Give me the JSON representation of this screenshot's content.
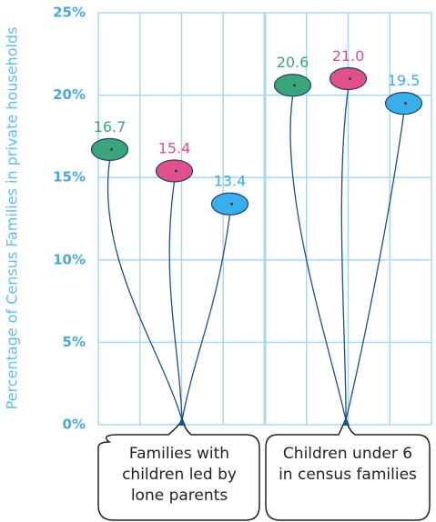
{
  "chart_data": {
    "type": "balloon",
    "ylabel": "Percentage of Census Families in private households",
    "categories": [
      "Families with children led by lone parents",
      "Children under 6 in census families"
    ],
    "series": [
      {
        "color": "#3aa57a",
        "values": [
          16.7,
          20.6
        ],
        "value_labels": [
          "16.7",
          "20.6"
        ]
      },
      {
        "color": "#e0508a",
        "values": [
          15.4,
          21.0
        ],
        "value_labels": [
          "15.4",
          "21.0"
        ]
      },
      {
        "color": "#3aaee8",
        "values": [
          13.4,
          19.5
        ],
        "value_labels": [
          "13.4",
          "19.5"
        ]
      }
    ],
    "ylim": [
      0,
      25
    ],
    "yticks": [
      {
        "value": 0,
        "label": "0%"
      },
      {
        "value": 5,
        "label": "5%"
      },
      {
        "value": 10,
        "label": "10%"
      },
      {
        "value": 15,
        "label": "15%"
      },
      {
        "value": 20,
        "label": "20%"
      },
      {
        "value": 25,
        "label": "25%"
      }
    ],
    "grid": true
  }
}
